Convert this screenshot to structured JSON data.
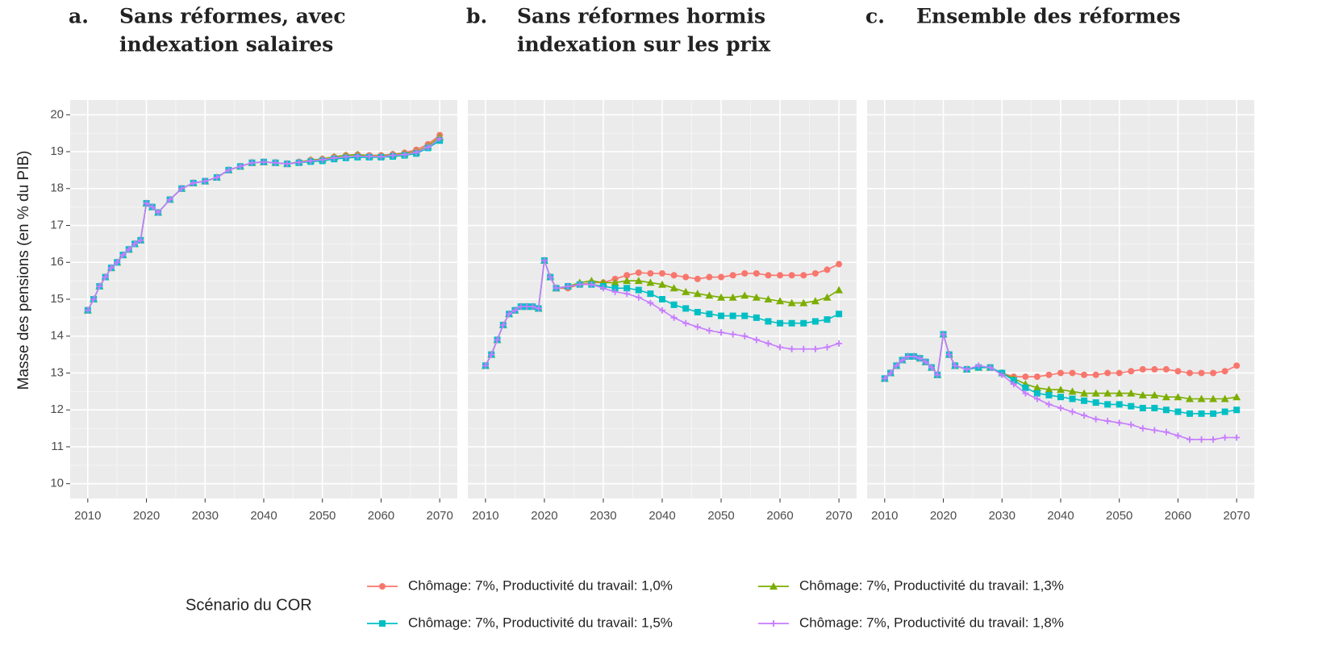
{
  "chart_data": [
    {
      "type": "line",
      "panel_label": "a.",
      "title": [
        "Sans réformes, avec",
        "indexation salaires"
      ],
      "ylabel": "Masse des pensions (en % du PIB)",
      "legend_title": "Scénario du COR",
      "x": [
        2010,
        2011,
        2012,
        2013,
        2014,
        2015,
        2016,
        2017,
        2018,
        2019,
        2020,
        2021,
        2022,
        2024,
        2026,
        2028,
        2030,
        2032,
        2034,
        2036,
        2038,
        2040,
        2042,
        2044,
        2046,
        2048,
        2050,
        2052,
        2054,
        2056,
        2058,
        2060,
        2062,
        2064,
        2066,
        2068,
        2070
      ],
      "xlim": [
        2007,
        2073
      ],
      "xticks": [
        2010,
        2020,
        2030,
        2040,
        2050,
        2060,
        2070
      ],
      "ylim": [
        9.6,
        20.4
      ],
      "yticks": [
        10,
        11,
        12,
        13,
        14,
        15,
        16,
        17,
        18,
        19,
        20
      ],
      "grid": true,
      "series": [
        {
          "name": "Chômage: 7%, Productivité du travail: 1,0%",
          "color": "#F8766D",
          "marker": "circle",
          "values": [
            14.7,
            15.0,
            15.35,
            15.6,
            15.85,
            16.0,
            16.2,
            16.35,
            16.5,
            16.6,
            17.6,
            17.5,
            17.35,
            17.7,
            18.0,
            18.15,
            18.2,
            18.3,
            18.5,
            18.6,
            18.7,
            18.72,
            18.7,
            18.67,
            18.72,
            18.77,
            18.8,
            18.86,
            18.9,
            18.92,
            18.9,
            18.9,
            18.93,
            18.97,
            19.05,
            19.2,
            19.45
          ]
        },
        {
          "name": "Chômage: 7%, Productivité du travail: 1,3%",
          "color": "#7CAE00",
          "marker": "triangle",
          "values": [
            14.7,
            15.0,
            15.35,
            15.6,
            15.85,
            16.0,
            16.2,
            16.35,
            16.5,
            16.6,
            17.6,
            17.5,
            17.35,
            17.7,
            18.0,
            18.15,
            18.2,
            18.3,
            18.5,
            18.6,
            18.7,
            18.72,
            18.7,
            18.67,
            18.72,
            18.77,
            18.8,
            18.86,
            18.9,
            18.92,
            18.88,
            18.88,
            18.92,
            18.95,
            19.0,
            19.15,
            19.4
          ]
        },
        {
          "name": "Chômage: 7%, Productivité du travail: 1,5%",
          "color": "#00BFC4",
          "marker": "square",
          "values": [
            14.7,
            15.0,
            15.35,
            15.6,
            15.85,
            16.0,
            16.2,
            16.35,
            16.5,
            16.6,
            17.6,
            17.5,
            17.35,
            17.7,
            18.0,
            18.15,
            18.2,
            18.3,
            18.5,
            18.6,
            18.7,
            18.72,
            18.7,
            18.67,
            18.7,
            18.73,
            18.75,
            18.8,
            18.83,
            18.85,
            18.85,
            18.85,
            18.87,
            18.9,
            18.95,
            19.1,
            19.3
          ]
        },
        {
          "name": "Chômage: 7%, Productivité du travail: 1,8%",
          "color": "#C77CFF",
          "marker": "plus",
          "values": [
            14.7,
            15.0,
            15.35,
            15.6,
            15.85,
            16.0,
            16.2,
            16.35,
            16.5,
            16.6,
            17.6,
            17.5,
            17.35,
            17.7,
            18.0,
            18.15,
            18.2,
            18.3,
            18.5,
            18.6,
            18.7,
            18.72,
            18.7,
            18.67,
            18.71,
            18.75,
            18.78,
            18.83,
            18.86,
            18.88,
            18.87,
            18.86,
            18.9,
            18.92,
            18.98,
            19.12,
            19.35
          ]
        }
      ]
    },
    {
      "type": "line",
      "panel_label": "b.",
      "title": [
        "Sans réformes hormis",
        "indexation sur les prix"
      ],
      "x": [
        2010,
        2011,
        2012,
        2013,
        2014,
        2015,
        2016,
        2017,
        2018,
        2019,
        2020,
        2021,
        2022,
        2024,
        2026,
        2028,
        2030,
        2032,
        2034,
        2036,
        2038,
        2040,
        2042,
        2044,
        2046,
        2048,
        2050,
        2052,
        2054,
        2056,
        2058,
        2060,
        2062,
        2064,
        2066,
        2068,
        2070
      ],
      "xlim": [
        2007,
        2073
      ],
      "xticks": [
        2010,
        2020,
        2030,
        2040,
        2050,
        2060,
        2070
      ],
      "ylim": [
        9.6,
        20.4
      ],
      "yticks": [
        10,
        11,
        12,
        13,
        14,
        15,
        16,
        17,
        18,
        19,
        20
      ],
      "grid": true,
      "series": [
        {
          "color": "#F8766D",
          "marker": "circle",
          "values": [
            13.2,
            13.5,
            13.9,
            14.3,
            14.6,
            14.7,
            14.8,
            14.8,
            14.8,
            14.75,
            16.05,
            15.6,
            15.3,
            15.3,
            15.4,
            15.45,
            15.45,
            15.55,
            15.65,
            15.72,
            15.7,
            15.7,
            15.65,
            15.6,
            15.55,
            15.6,
            15.6,
            15.65,
            15.7,
            15.7,
            15.65,
            15.65,
            15.65,
            15.65,
            15.7,
            15.8,
            15.95
          ]
        },
        {
          "color": "#7CAE00",
          "marker": "triangle",
          "values": [
            13.2,
            13.5,
            13.9,
            14.3,
            14.6,
            14.7,
            14.8,
            14.8,
            14.8,
            14.75,
            16.05,
            15.6,
            15.3,
            15.35,
            15.45,
            15.5,
            15.45,
            15.45,
            15.5,
            15.5,
            15.45,
            15.4,
            15.3,
            15.2,
            15.15,
            15.1,
            15.05,
            15.05,
            15.1,
            15.05,
            15.0,
            14.95,
            14.9,
            14.9,
            14.95,
            15.05,
            15.25
          ]
        },
        {
          "color": "#00BFC4",
          "marker": "square",
          "values": [
            13.2,
            13.5,
            13.9,
            14.3,
            14.6,
            14.7,
            14.8,
            14.8,
            14.8,
            14.75,
            16.05,
            15.6,
            15.3,
            15.35,
            15.4,
            15.4,
            15.35,
            15.3,
            15.3,
            15.25,
            15.15,
            15.0,
            14.85,
            14.75,
            14.65,
            14.6,
            14.55,
            14.55,
            14.55,
            14.5,
            14.4,
            14.35,
            14.35,
            14.35,
            14.4,
            14.45,
            14.6
          ]
        },
        {
          "color": "#C77CFF",
          "marker": "plus",
          "values": [
            13.2,
            13.5,
            13.9,
            14.3,
            14.6,
            14.7,
            14.8,
            14.8,
            14.8,
            14.75,
            16.05,
            15.6,
            15.3,
            15.35,
            15.4,
            15.4,
            15.3,
            15.2,
            15.15,
            15.05,
            14.9,
            14.7,
            14.5,
            14.35,
            14.25,
            14.15,
            14.1,
            14.05,
            14.0,
            13.9,
            13.8,
            13.7,
            13.65,
            13.65,
            13.65,
            13.7,
            13.8
          ]
        }
      ]
    },
    {
      "type": "line",
      "panel_label": "c.",
      "title": [
        "Ensemble des réformes"
      ],
      "x": [
        2010,
        2011,
        2012,
        2013,
        2014,
        2015,
        2016,
        2017,
        2018,
        2019,
        2020,
        2021,
        2022,
        2024,
        2026,
        2028,
        2030,
        2032,
        2034,
        2036,
        2038,
        2040,
        2042,
        2044,
        2046,
        2048,
        2050,
        2052,
        2054,
        2056,
        2058,
        2060,
        2062,
        2064,
        2066,
        2068,
        2070
      ],
      "xlim": [
        2007,
        2073
      ],
      "xticks": [
        2010,
        2020,
        2030,
        2040,
        2050,
        2060,
        2070
      ],
      "ylim": [
        9.6,
        20.4
      ],
      "yticks": [
        10,
        11,
        12,
        13,
        14,
        15,
        16,
        17,
        18,
        19,
        20
      ],
      "grid": true,
      "series": [
        {
          "color": "#F8766D",
          "marker": "circle",
          "values": [
            12.85,
            13.0,
            13.2,
            13.35,
            13.45,
            13.45,
            13.4,
            13.3,
            13.15,
            12.95,
            14.05,
            13.5,
            13.2,
            13.1,
            13.15,
            13.15,
            13.0,
            12.9,
            12.9,
            12.9,
            12.95,
            13.0,
            13.0,
            12.95,
            12.95,
            13.0,
            13.0,
            13.05,
            13.1,
            13.1,
            13.1,
            13.05,
            13.0,
            13.0,
            13.0,
            13.05,
            13.2
          ]
        },
        {
          "color": "#7CAE00",
          "marker": "triangle",
          "values": [
            12.85,
            13.0,
            13.2,
            13.35,
            13.45,
            13.45,
            13.4,
            13.3,
            13.15,
            12.95,
            14.05,
            13.5,
            13.2,
            13.1,
            13.15,
            13.15,
            13.0,
            12.85,
            12.7,
            12.6,
            12.55,
            12.55,
            12.5,
            12.45,
            12.45,
            12.45,
            12.45,
            12.45,
            12.4,
            12.4,
            12.35,
            12.35,
            12.3,
            12.3,
            12.3,
            12.3,
            12.35
          ]
        },
        {
          "color": "#00BFC4",
          "marker": "square",
          "values": [
            12.85,
            13.0,
            13.2,
            13.35,
            13.45,
            13.45,
            13.4,
            13.3,
            13.15,
            12.95,
            14.05,
            13.5,
            13.2,
            13.1,
            13.15,
            13.15,
            13.0,
            12.8,
            12.6,
            12.45,
            12.4,
            12.35,
            12.3,
            12.25,
            12.2,
            12.15,
            12.15,
            12.1,
            12.05,
            12.05,
            12.0,
            11.95,
            11.9,
            11.9,
            11.9,
            11.95,
            12.0
          ]
        },
        {
          "color": "#C77CFF",
          "marker": "plus",
          "values": [
            12.85,
            13.0,
            13.2,
            13.35,
            13.45,
            13.45,
            13.4,
            13.3,
            13.15,
            12.95,
            14.05,
            13.5,
            13.2,
            13.1,
            13.2,
            13.15,
            12.95,
            12.7,
            12.45,
            12.3,
            12.15,
            12.05,
            11.95,
            11.85,
            11.75,
            11.7,
            11.65,
            11.6,
            11.5,
            11.45,
            11.4,
            11.3,
            11.2,
            11.2,
            11.2,
            11.25,
            11.25
          ]
        }
      ]
    }
  ]
}
